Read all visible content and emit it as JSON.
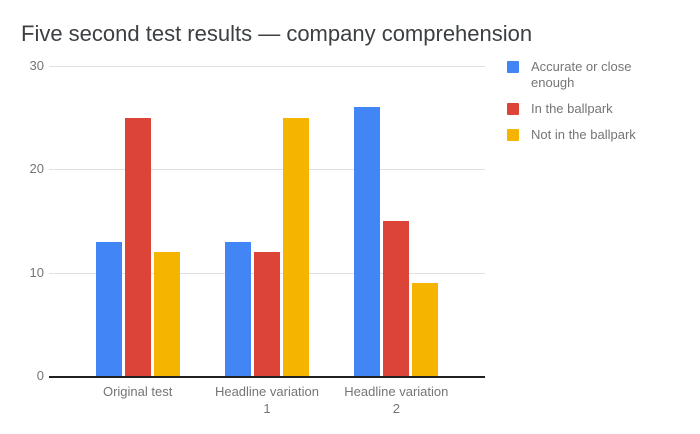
{
  "chart_data": {
    "type": "bar",
    "title": "Five second test results — company comprehension",
    "categories": [
      "Original test",
      "Headline variation 1",
      "Headline variation 2"
    ],
    "series": [
      {
        "name": "Accurate or close enough",
        "color": "#4285F4",
        "values": [
          13,
          13,
          26
        ]
      },
      {
        "name": "In the ballpark",
        "color": "#DB4437",
        "values": [
          25,
          12,
          15
        ]
      },
      {
        "name": "Not in the ballpark",
        "color": "#F4B400",
        "values": [
          12,
          25,
          9
        ]
      }
    ],
    "xlabel": "",
    "ylabel": "",
    "ylim": [
      0,
      30
    ],
    "yticks": [
      0,
      10,
      20,
      30
    ],
    "grid": true,
    "legend_position": "right"
  }
}
